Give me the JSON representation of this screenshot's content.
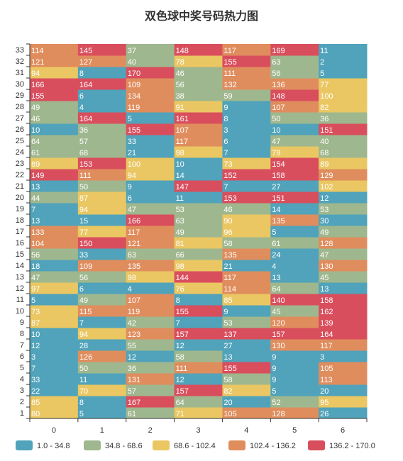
{
  "chart_data": {
    "type": "heatmap",
    "title": "双色球中奖号码热力图",
    "x_categories": [
      "0",
      "1",
      "2",
      "3",
      "4",
      "5",
      "6"
    ],
    "y_categories": [
      "1",
      "2",
      "3",
      "4",
      "5",
      "6",
      "7",
      "8",
      "9",
      "10",
      "11",
      "12",
      "13",
      "14",
      "15",
      "16",
      "17",
      "18",
      "19",
      "20",
      "21",
      "22",
      "23",
      "24",
      "25",
      "26",
      "27",
      "28",
      "29",
      "30",
      "31",
      "32",
      "33"
    ],
    "value_range": [
      1,
      170
    ],
    "rows": [
      [
        80,
        5,
        61,
        71,
        105,
        128,
        26
      ],
      [
        85,
        8,
        167,
        64,
        20,
        52,
        95
      ],
      [
        22,
        70,
        57,
        157,
        82,
        5,
        20
      ],
      [
        33,
        11,
        131,
        12,
        58,
        9,
        113
      ],
      [
        7,
        50,
        36,
        111,
        155,
        9,
        105
      ],
      [
        3,
        126,
        12,
        58,
        13,
        9,
        3
      ],
      [
        12,
        28,
        55,
        12,
        27,
        130,
        117
      ],
      [
        10,
        94,
        123,
        157,
        137,
        157,
        164
      ],
      [
        87,
        7,
        42,
        7,
        53,
        120,
        139
      ],
      [
        73,
        115,
        119,
        155,
        9,
        45,
        162
      ],
      [
        5,
        49,
        107,
        8,
        85,
        140,
        158
      ],
      [
        97,
        6,
        4,
        76,
        114,
        64,
        13
      ],
      [
        47,
        56,
        98,
        144,
        117,
        13,
        45
      ],
      [
        18,
        109,
        135,
        98,
        21,
        4,
        130
      ],
      [
        56,
        33,
        63,
        66,
        135,
        24,
        47
      ],
      [
        104,
        150,
        121,
        81,
        58,
        61,
        128
      ],
      [
        133,
        77,
        117,
        49,
        96,
        5,
        49
      ],
      [
        13,
        15,
        166,
        63,
        90,
        135,
        30
      ],
      [
        7,
        94,
        47,
        53,
        46,
        14,
        53
      ],
      [
        44,
        87,
        6,
        11,
        153,
        151,
        12
      ],
      [
        13,
        50,
        9,
        147,
        7,
        27,
        102
      ],
      [
        149,
        111,
        94,
        14,
        152,
        158,
        129
      ],
      [
        89,
        153,
        100,
        10,
        73,
        154,
        89
      ],
      [
        61,
        68,
        21,
        98,
        7,
        79,
        68
      ],
      [
        64,
        57,
        33,
        117,
        6,
        47,
        40
      ],
      [
        10,
        36,
        155,
        107,
        3,
        10,
        151
      ],
      [
        46,
        164,
        5,
        161,
        8,
        50,
        36
      ],
      [
        49,
        4,
        119,
        91,
        9,
        107,
        82
      ],
      [
        155,
        6,
        134,
        38,
        59,
        148,
        100
      ],
      [
        166,
        164,
        109,
        56,
        132,
        136,
        77
      ],
      [
        94,
        8,
        170,
        46,
        111,
        56,
        5
      ],
      [
        121,
        127,
        40,
        78,
        155,
        63,
        2
      ],
      [
        114,
        145,
        37,
        148,
        117,
        169,
        11
      ]
    ],
    "bins": [
      {
        "label": "1.0 - 34.8",
        "min": 1.0,
        "max": 34.8,
        "color": "#50a3ba"
      },
      {
        "label": "34.8 - 68.6",
        "min": 34.8,
        "max": 68.6,
        "color": "#9fb78e"
      },
      {
        "label": "68.6 - 102.4",
        "min": 68.6,
        "max": 102.4,
        "color": "#eac763"
      },
      {
        "label": "102.4 - 136.2",
        "min": 102.4,
        "max": 136.2,
        "color": "#e08d5e"
      },
      {
        "label": "136.2 - 170.0",
        "min": 136.2,
        "max": 170.0,
        "color": "#d94e5d"
      }
    ],
    "legend_position": "bottom"
  }
}
